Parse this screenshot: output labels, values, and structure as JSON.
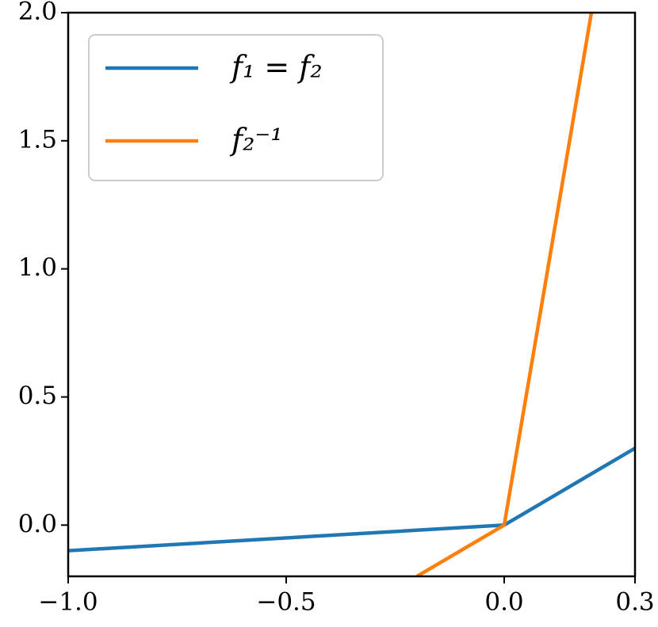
{
  "chart_data": {
    "type": "line",
    "series": [
      {
        "name": "f₁ = f₂",
        "color": "#1f77b4",
        "x": [
          -1.0,
          0.0,
          0.3
        ],
        "y": [
          -0.1,
          0.0,
          0.3
        ]
      },
      {
        "name": "f₂⁻¹",
        "color": "#ff7f0e",
        "x": [
          -0.2,
          0.0,
          0.2
        ],
        "y": [
          -0.2,
          0.0,
          2.0
        ]
      }
    ],
    "xlim": [
      -1.0,
      0.3
    ],
    "ylim": [
      -0.2,
      2.0
    ],
    "xticks": [
      {
        "value": -1.0,
        "label": "−1.0"
      },
      {
        "value": -0.5,
        "label": "−0.5"
      },
      {
        "value": 0.0,
        "label": "0.0"
      },
      0.3
    ],
    "yticks": [
      {
        "value": 0.0,
        "label": "0.0"
      },
      0.5,
      {
        "value": 1.0,
        "label": "1.0"
      },
      1.5,
      {
        "value": 2.0,
        "label": "2.0"
      }
    ],
    "legend": "upper left"
  }
}
